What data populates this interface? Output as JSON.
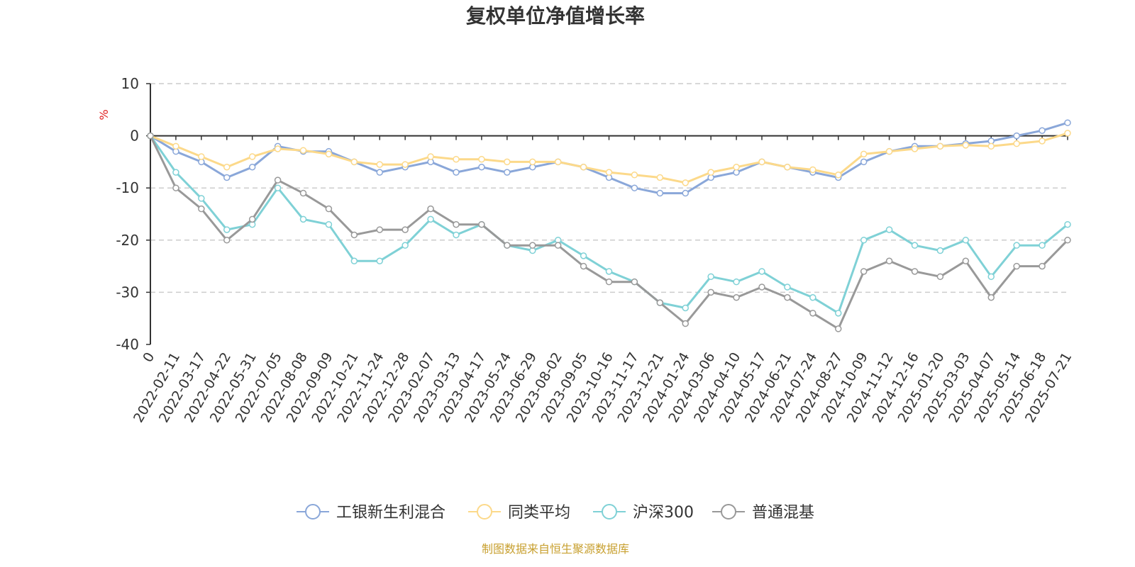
{
  "chart_data": {
    "type": "line",
    "title": "复权单位净值增长率",
    "ylabel": "%",
    "ylim": [
      -40,
      10
    ],
    "yticks": [
      10,
      0,
      -10,
      -20,
      -30,
      -40
    ],
    "grid": true,
    "legend_position": "bottom",
    "source": "制图数据来自恒生聚源数据库",
    "x": [
      "0",
      "2022-02-11",
      "2022-03-17",
      "2022-04-22",
      "2022-05-31",
      "2022-07-05",
      "2022-08-08",
      "2022-09-09",
      "2022-10-21",
      "2022-11-24",
      "2022-12-28",
      "2023-02-07",
      "2023-03-13",
      "2023-04-17",
      "2023-05-24",
      "2023-06-29",
      "2023-08-02",
      "2023-09-05",
      "2023-10-16",
      "2023-11-17",
      "2023-12-21",
      "2024-01-24",
      "2024-03-06",
      "2024-04-10",
      "2024-05-17",
      "2024-06-21",
      "2024-07-24",
      "2024-08-27",
      "2024-10-09",
      "2024-11-12",
      "2024-12-16",
      "2025-01-20",
      "2025-03-03",
      "2025-04-07",
      "2025-05-14",
      "2025-06-18",
      "2025-07-21"
    ],
    "series": [
      {
        "name": "工银新生利混合",
        "color": "#8aa7d9",
        "values": [
          0,
          -3,
          -5,
          -8,
          -6,
          -2,
          -3,
          -3,
          -5,
          -7,
          -6,
          -5,
          -7,
          -6,
          -7,
          -6,
          -5,
          -6,
          -8,
          -10,
          -11,
          -11,
          -8,
          -7,
          -5,
          -6,
          -7,
          -8,
          -5,
          -3,
          -2,
          -2,
          -1.5,
          -1,
          0,
          1,
          2.5
        ]
      },
      {
        "name": "同类平均",
        "color": "#fcd98a",
        "values": [
          0,
          -2,
          -4,
          -6,
          -4,
          -2.5,
          -2.8,
          -3.5,
          -5,
          -5.5,
          -5.5,
          -4,
          -4.5,
          -4.5,
          -5,
          -5,
          -5,
          -6,
          -7,
          -7.5,
          -8,
          -9,
          -7,
          -6,
          -5,
          -6,
          -6.5,
          -7.5,
          -3.5,
          -3,
          -2.5,
          -2,
          -1.8,
          -2,
          -1.5,
          -1,
          0.5
        ]
      },
      {
        "name": "沪深300",
        "color": "#7fd1d6",
        "values": [
          0,
          -7,
          -12,
          -18,
          -17,
          -10,
          -16,
          -17,
          -24,
          -24,
          -21,
          -16,
          -19,
          -17,
          -21,
          -22,
          -20,
          -23,
          -26,
          -28,
          -32,
          -33,
          -27,
          -28,
          -26,
          -29,
          -31,
          -34,
          -20,
          -18,
          -21,
          -22,
          -20,
          -27,
          -21,
          -21,
          -17
        ]
      },
      {
        "name": "普通混基",
        "color": "#999999",
        "values": [
          0,
          -10,
          -14,
          -20,
          -16,
          -8.5,
          -11,
          -14,
          -19,
          -18,
          -18,
          -14,
          -17,
          -17,
          -21,
          -21,
          -21,
          -25,
          -28,
          -28,
          -32,
          -36,
          -30,
          -31,
          -29,
          -31,
          -34,
          -37,
          -26,
          -24,
          -26,
          -27,
          -24,
          -31,
          -25,
          -25,
          -20
        ]
      }
    ]
  }
}
